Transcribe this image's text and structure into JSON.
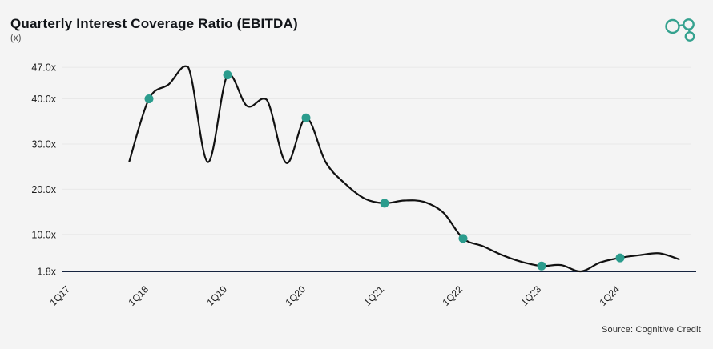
{
  "header": {
    "title": "Quarterly Interest Coverage Ratio (EBITDA)",
    "subtitle": "(x)"
  },
  "footer": {
    "source": "Source: Cognitive Credit"
  },
  "colors": {
    "background": "#f4f4f4",
    "line": "#111111",
    "marker": "#2b9c8d",
    "baseline": "#16243f",
    "gridline": "#e8e8e8",
    "axis_text": "#1a1a1a",
    "logo_accent": "#35a28f"
  },
  "chart_data": {
    "type": "line",
    "title": "Quarterly Interest Coverage Ratio (EBITDA)",
    "unit": "x",
    "ylabel": "(x)",
    "ylim": [
      1.8,
      47.0
    ],
    "grid": "horizontal",
    "legend": "none",
    "y_ticks": [
      {
        "value": 47.0,
        "label": "47.0x"
      },
      {
        "value": 40.0,
        "label": "40.0x"
      },
      {
        "value": 30.0,
        "label": "30.0x"
      },
      {
        "value": 20.0,
        "label": "20.0x"
      },
      {
        "value": 10.0,
        "label": "10.0x"
      },
      {
        "value": 1.8,
        "label": "1.8x"
      }
    ],
    "x_ticks": [
      {
        "q": 0,
        "label": "1Q17"
      },
      {
        "q": 4,
        "label": "1Q18"
      },
      {
        "q": 8,
        "label": "1Q19"
      },
      {
        "q": 12,
        "label": "1Q20"
      },
      {
        "q": 16,
        "label": "1Q21"
      },
      {
        "q": 20,
        "label": "1Q22"
      },
      {
        "q": 24,
        "label": "1Q23"
      },
      {
        "q": 28,
        "label": "1Q24"
      }
    ],
    "series": [
      {
        "name": "Quarterly Interest Coverage Ratio (EBITDA)",
        "points": [
          {
            "label": "4Q17",
            "q": 3,
            "value": 26.2,
            "marker": false
          },
          {
            "label": "1Q18",
            "q": 4,
            "value": 40.0,
            "marker": true
          },
          {
            "label": "2Q18",
            "q": 5,
            "value": 43.2,
            "marker": false
          },
          {
            "label": "3Q18",
            "q": 6,
            "value": 47.0,
            "marker": false
          },
          {
            "label": "4Q18",
            "q": 7,
            "value": 26.0,
            "marker": false
          },
          {
            "label": "1Q19",
            "q": 8,
            "value": 45.3,
            "marker": true
          },
          {
            "label": "2Q19",
            "q": 9,
            "value": 38.4,
            "marker": false
          },
          {
            "label": "3Q19",
            "q": 10,
            "value": 39.8,
            "marker": false
          },
          {
            "label": "4Q19",
            "q": 11,
            "value": 25.8,
            "marker": false
          },
          {
            "label": "1Q20",
            "q": 12,
            "value": 35.8,
            "marker": true
          },
          {
            "label": "2Q20",
            "q": 13,
            "value": 26.0,
            "marker": false
          },
          {
            "label": "3Q20",
            "q": 14,
            "value": 21.2,
            "marker": false
          },
          {
            "label": "4Q20",
            "q": 15,
            "value": 17.9,
            "marker": false
          },
          {
            "label": "1Q21",
            "q": 16,
            "value": 16.9,
            "marker": true
          },
          {
            "label": "2Q21",
            "q": 17,
            "value": 17.5,
            "marker": false
          },
          {
            "label": "3Q21",
            "q": 18,
            "value": 17.2,
            "marker": false
          },
          {
            "label": "4Q21",
            "q": 19,
            "value": 14.8,
            "marker": false
          },
          {
            "label": "1Q22",
            "q": 20,
            "value": 9.1,
            "marker": true
          },
          {
            "label": "2Q22",
            "q": 21,
            "value": 7.4,
            "marker": false
          },
          {
            "label": "3Q22",
            "q": 22,
            "value": 5.4,
            "marker": false
          },
          {
            "label": "4Q22",
            "q": 23,
            "value": 3.9,
            "marker": false
          },
          {
            "label": "1Q23",
            "q": 24,
            "value": 3.0,
            "marker": true
          },
          {
            "label": "2Q23",
            "q": 25,
            "value": 3.2,
            "marker": false
          },
          {
            "label": "3Q23",
            "q": 26,
            "value": 1.8,
            "marker": false
          },
          {
            "label": "4Q23",
            "q": 27,
            "value": 3.8,
            "marker": false
          },
          {
            "label": "1Q24",
            "q": 28,
            "value": 4.8,
            "marker": true
          },
          {
            "label": "2Q24",
            "q": 29,
            "value": 5.4,
            "marker": false
          },
          {
            "label": "3Q24",
            "q": 30,
            "value": 5.8,
            "marker": false
          },
          {
            "label": "424",
            "q": 31,
            "value": 4.5,
            "marker": false
          }
        ]
      }
    ]
  }
}
